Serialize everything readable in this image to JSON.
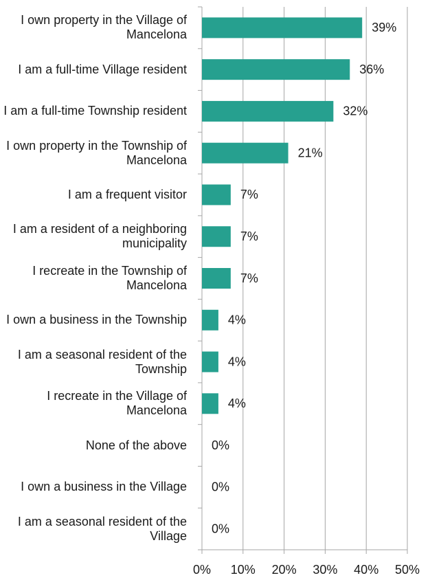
{
  "chart_data": {
    "type": "bar",
    "orientation": "horizontal",
    "categories": [
      "I own property in the Village of Mancelona",
      "I am a full-time Village resident",
      "I am a full-time Township resident",
      "I own property in the Township of Mancelona",
      "I am a frequent visitor",
      "I am a resident of a neighboring municipality",
      "I recreate in the Township of Mancelona",
      "I own a business in the Township",
      "I am a seasonal resident of the Township",
      "I recreate in the Village of Mancelona",
      "None of the above",
      "I own a business in the Village",
      "I am a seasonal resident of the Village"
    ],
    "values": [
      39,
      36,
      32,
      21,
      7,
      7,
      7,
      4,
      4,
      4,
      0,
      0,
      0
    ],
    "value_labels": [
      "39%",
      "36%",
      "32%",
      "21%",
      "7%",
      "7%",
      "7%",
      "4%",
      "4%",
      "4%",
      "0%",
      "0%",
      "0%"
    ],
    "color": "#26a08f",
    "xlim": [
      0,
      50
    ],
    "xticks": [
      {
        "value": 0,
        "label": "0%"
      },
      {
        "value": 10,
        "label": "10%"
      },
      {
        "value": 20,
        "label": "20%"
      },
      {
        "value": 30,
        "label": "30%"
      },
      {
        "value": 40,
        "label": "40%"
      },
      {
        "value": 50,
        "label": "50%"
      }
    ],
    "grid": true
  }
}
